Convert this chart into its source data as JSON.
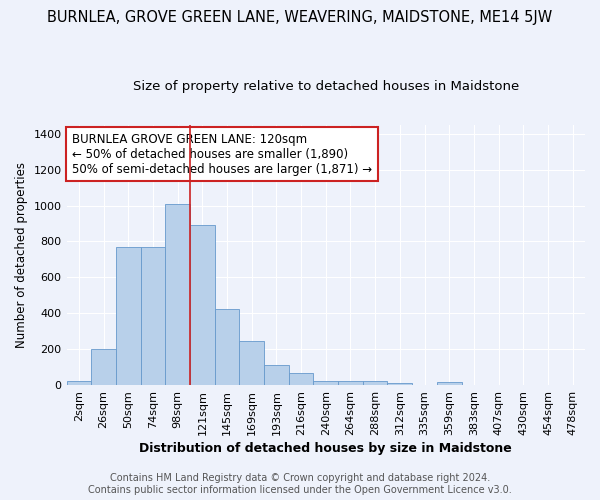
{
  "title": "BURNLEA, GROVE GREEN LANE, WEAVERING, MAIDSTONE, ME14 5JW",
  "subtitle": "Size of property relative to detached houses in Maidstone",
  "xlabel": "Distribution of detached houses by size in Maidstone",
  "ylabel": "Number of detached properties",
  "footer_line1": "Contains HM Land Registry data © Crown copyright and database right 2024.",
  "footer_line2": "Contains public sector information licensed under the Open Government Licence v3.0.",
  "bar_labels": [
    "2sqm",
    "26sqm",
    "50sqm",
    "74sqm",
    "98sqm",
    "121sqm",
    "145sqm",
    "169sqm",
    "193sqm",
    "216sqm",
    "240sqm",
    "264sqm",
    "288sqm",
    "312sqm",
    "335sqm",
    "359sqm",
    "383sqm",
    "407sqm",
    "430sqm",
    "454sqm",
    "478sqm"
  ],
  "bar_values": [
    25,
    200,
    770,
    770,
    1010,
    890,
    425,
    245,
    110,
    70,
    25,
    20,
    20,
    10,
    0,
    15,
    0,
    0,
    0,
    0,
    0
  ],
  "bar_color": "#b8d0ea",
  "bar_edge_color": "#6699cc",
  "background_color": "#eef2fb",
  "ylim": [
    0,
    1450
  ],
  "yticks": [
    0,
    200,
    400,
    600,
    800,
    1000,
    1200,
    1400
  ],
  "annotation_text": "BURNLEA GROVE GREEN LANE: 120sqm\n← 50% of detached houses are smaller (1,890)\n50% of semi-detached houses are larger (1,871) →",
  "vline_x_index": 5,
  "vline_color": "#cc2222",
  "annotation_box_color": "#ffffff",
  "annotation_box_edge": "#cc2222",
  "title_fontsize": 10.5,
  "subtitle_fontsize": 9.5,
  "xlabel_fontsize": 9,
  "ylabel_fontsize": 8.5,
  "tick_fontsize": 8,
  "annotation_fontsize": 8.5,
  "footer_fontsize": 7
}
